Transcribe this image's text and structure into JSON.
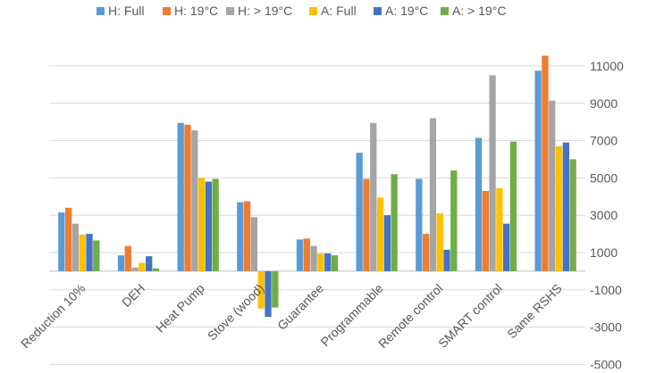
{
  "chart_data": {
    "type": "bar",
    "title": "",
    "xlabel": "",
    "ylabel": "",
    "ylim": [
      -5000,
      12000
    ],
    "yticks": [
      11000,
      9000,
      7000,
      5000,
      3000,
      1000,
      -1000,
      -3000,
      -5000
    ],
    "grid": "horizontal",
    "y_axis_side": "right",
    "legend_position": "top",
    "categories": [
      "Reduction 10%",
      "DEH",
      "Heat Pump",
      "Stove (wood)",
      "Guarantee",
      "Programmable",
      "Remote control",
      "SMART control",
      "Same RSHS"
    ],
    "series": [
      {
        "name": "H: Full",
        "color": "#5B9BD5",
        "values": [
          3150,
          850,
          7950,
          3700,
          1700,
          6350,
          4950,
          7150,
          10750
        ]
      },
      {
        "name": "H: 19°C",
        "color": "#ED7D31",
        "values": [
          3400,
          1350,
          7850,
          3750,
          1750,
          4950,
          2000,
          4300,
          11550
        ]
      },
      {
        "name": "H: > 19°C",
        "color": "#A5A5A5",
        "values": [
          2550,
          200,
          7550,
          2900,
          1350,
          7950,
          8200,
          10500,
          9150
        ]
      },
      {
        "name": "A: Full",
        "color": "#FFC000",
        "values": [
          1950,
          450,
          5000,
          -2000,
          950,
          3950,
          3100,
          4450,
          6700
        ]
      },
      {
        "name": "A: 19°C",
        "color": "#4472C4",
        "values": [
          2000,
          800,
          4800,
          -2450,
          950,
          3000,
          1150,
          2550,
          6900
        ]
      },
      {
        "name": "A: > 19°C",
        "color": "#70AD47",
        "values": [
          1650,
          150,
          4950,
          -1950,
          850,
          5200,
          5400,
          6950,
          6000
        ]
      }
    ]
  }
}
